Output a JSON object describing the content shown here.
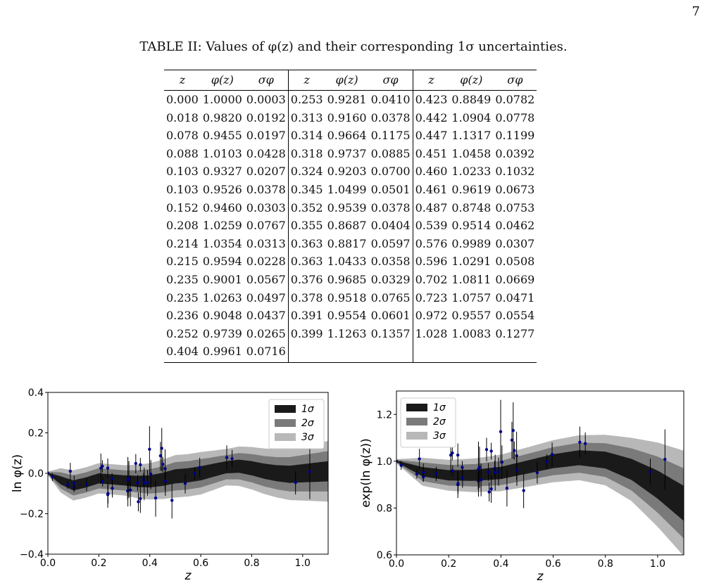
{
  "page_number": "7",
  "caption": "TABLE II: Values of φ(z) and their corresponding 1σ uncertainties.",
  "table": {
    "headers": [
      "z",
      "φ(z)",
      "σφ",
      "z",
      "φ(z)",
      "σφ",
      "z",
      "φ(z)",
      "σφ"
    ],
    "rows": [
      [
        "0.000",
        "1.0000",
        "0.0003",
        "0.253",
        "0.9281",
        "0.0410",
        "0.423",
        "0.8849",
        "0.0782"
      ],
      [
        "0.018",
        "0.9820",
        "0.0192",
        "0.313",
        "0.9160",
        "0.0378",
        "0.442",
        "1.0904",
        "0.0778"
      ],
      [
        "0.078",
        "0.9455",
        "0.0197",
        "0.314",
        "0.9664",
        "0.1175",
        "0.447",
        "1.1317",
        "0.1199"
      ],
      [
        "0.088",
        "1.0103",
        "0.0428",
        "0.318",
        "0.9737",
        "0.0885",
        "0.451",
        "1.0458",
        "0.0392"
      ],
      [
        "0.103",
        "0.9327",
        "0.0207",
        "0.324",
        "0.9203",
        "0.0700",
        "0.460",
        "1.0233",
        "0.1032"
      ],
      [
        "0.103",
        "0.9526",
        "0.0378",
        "0.345",
        "1.0499",
        "0.0501",
        "0.461",
        "0.9619",
        "0.0673"
      ],
      [
        "0.152",
        "0.9460",
        "0.0303",
        "0.352",
        "0.9539",
        "0.0378",
        "0.487",
        "0.8748",
        "0.0753"
      ],
      [
        "0.208",
        "1.0259",
        "0.0767",
        "0.355",
        "0.8687",
        "0.0404",
        "0.539",
        "0.9514",
        "0.0462"
      ],
      [
        "0.214",
        "1.0354",
        "0.0313",
        "0.363",
        "0.8817",
        "0.0597",
        "0.576",
        "0.9989",
        "0.0307"
      ],
      [
        "0.215",
        "0.9594",
        "0.0228",
        "0.363",
        "1.0433",
        "0.0358",
        "0.596",
        "1.0291",
        "0.0508"
      ],
      [
        "0.235",
        "0.9001",
        "0.0567",
        "0.376",
        "0.9685",
        "0.0329",
        "0.702",
        "1.0811",
        "0.0669"
      ],
      [
        "0.235",
        "1.0263",
        "0.0497",
        "0.378",
        "0.9518",
        "0.0765",
        "0.723",
        "1.0757",
        "0.0471"
      ],
      [
        "0.236",
        "0.9048",
        "0.0437",
        "0.391",
        "0.9554",
        "0.0601",
        "0.972",
        "0.9557",
        "0.0554"
      ],
      [
        "0.252",
        "0.9739",
        "0.0265",
        "0.399",
        "1.1263",
        "0.1357",
        "1.028",
        "1.0083",
        "0.1277"
      ],
      [
        "0.404",
        "0.9961",
        "0.0716",
        "",
        "",
        "",
        "",
        "",
        ""
      ]
    ]
  },
  "chart_data": [
    {
      "type": "scatter",
      "xlabel": "z",
      "ylabel": "ln φ(z)",
      "xlim": [
        0,
        1.1
      ],
      "ylim": [
        -0.4,
        0.4
      ],
      "xticks": [
        "0.0",
        "0.2",
        "0.4",
        "0.6",
        "0.8",
        "1.0"
      ],
      "yticks": [
        "0.4",
        "0.2",
        "0.0",
        "−0.2",
        "−0.4"
      ],
      "legend": [
        "1σ",
        "2σ",
        "3σ"
      ],
      "legend_position": "top-right",
      "band_colors": [
        "#1a1a1a",
        "#7a7a7a",
        "#b8b8b8"
      ],
      "point_color": "#00008b",
      "band_center": [
        [
          0,
          0
        ],
        [
          0.05,
          -0.035
        ],
        [
          0.1,
          -0.06
        ],
        [
          0.15,
          -0.045
        ],
        [
          0.2,
          -0.025
        ],
        [
          0.25,
          -0.03
        ],
        [
          0.3,
          -0.035
        ],
        [
          0.35,
          -0.04
        ],
        [
          0.4,
          -0.04
        ],
        [
          0.45,
          -0.03
        ],
        [
          0.5,
          -0.015
        ],
        [
          0.55,
          -0.01
        ],
        [
          0.6,
          0
        ],
        [
          0.65,
          0.015
        ],
        [
          0.7,
          0.03
        ],
        [
          0.75,
          0.035
        ],
        [
          0.8,
          0.025
        ],
        [
          0.85,
          0.01
        ],
        [
          0.9,
          0
        ],
        [
          0.95,
          -0.005
        ],
        [
          1.0,
          0
        ],
        [
          1.05,
          0.005
        ],
        [
          1.1,
          0.01
        ]
      ],
      "band_halfwidth": [
        [
          0,
          0.003
        ],
        [
          0.05,
          0.02
        ],
        [
          0.1,
          0.025
        ],
        [
          0.2,
          0.025
        ],
        [
          0.3,
          0.025
        ],
        [
          0.4,
          0.03
        ],
        [
          0.5,
          0.035
        ],
        [
          0.6,
          0.035
        ],
        [
          0.7,
          0.03
        ],
        [
          0.8,
          0.035
        ],
        [
          0.9,
          0.04
        ],
        [
          1.0,
          0.045
        ],
        [
          1.1,
          0.05
        ]
      ]
    },
    {
      "type": "scatter",
      "xlabel": "z",
      "ylabel": "exp(ln φ(z))",
      "xlim": [
        0,
        1.1
      ],
      "ylim": [
        0.6,
        1.3
      ],
      "xticks": [
        "0.0",
        "0.2",
        "0.4",
        "0.6",
        "0.8",
        "1.0"
      ],
      "yticks": [
        "1.2",
        "1.0",
        "0.8",
        "0.6"
      ],
      "legend": [
        "1σ",
        "2σ",
        "3σ"
      ],
      "legend_position": "top-left",
      "band_colors": [
        "#1a1a1a",
        "#7a7a7a",
        "#b8b8b8"
      ],
      "point_color": "#00008b",
      "band_center": [
        [
          0,
          1.0
        ],
        [
          0.1,
          0.955
        ],
        [
          0.2,
          0.94
        ],
        [
          0.3,
          0.94
        ],
        [
          0.4,
          0.95
        ],
        [
          0.5,
          0.975
        ],
        [
          0.6,
          1.0
        ],
        [
          0.7,
          1.015
        ],
        [
          0.8,
          1.005
        ],
        [
          0.9,
          0.965
        ],
        [
          1.0,
          0.9
        ],
        [
          1.1,
          0.82
        ]
      ],
      "band_halfwidth": [
        [
          0,
          0.003
        ],
        [
          0.1,
          0.02
        ],
        [
          0.2,
          0.022
        ],
        [
          0.3,
          0.024
        ],
        [
          0.4,
          0.026
        ],
        [
          0.5,
          0.028
        ],
        [
          0.6,
          0.03
        ],
        [
          0.7,
          0.032
        ],
        [
          0.8,
          0.036
        ],
        [
          0.9,
          0.045
        ],
        [
          1.0,
          0.06
        ],
        [
          1.1,
          0.075
        ]
      ]
    }
  ]
}
